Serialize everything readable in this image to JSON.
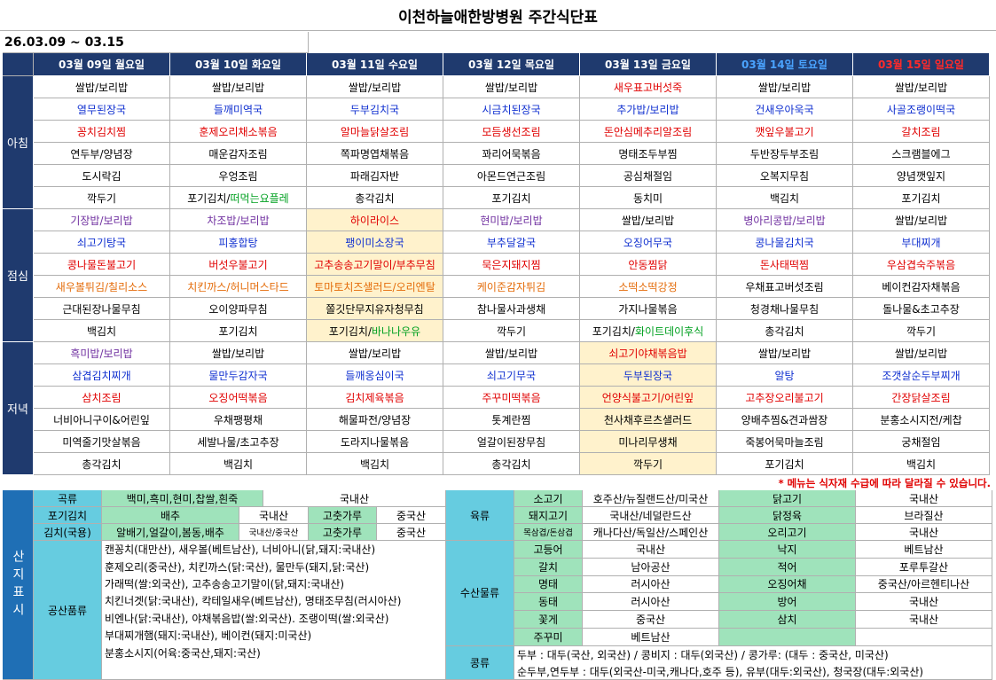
{
  "header": {
    "title": "이천하늘애한방병원 주간식단표",
    "date_range": "26.03.09 ~ 03.15"
  },
  "days": [
    {
      "label": "03월 09일 월요일",
      "color": "#ffffff"
    },
    {
      "label": "03월 10일 화요일",
      "color": "#ffffff"
    },
    {
      "label": "03월 11일 수요일",
      "color": "#ffffff"
    },
    {
      "label": "03월 12일 목요일",
      "color": "#ffffff"
    },
    {
      "label": "03월 13일 금요일",
      "color": "#ffffff"
    },
    {
      "label": "03월 14일 토요일",
      "color": "#4aa3ff"
    },
    {
      "label": "03월 15일 일요일",
      "color": "#ff2a2a"
    }
  ],
  "meals": [
    {
      "name": "아침",
      "rows": [
        {
          "color": "#000000",
          "items": [
            "쌀밥/보리밥",
            "쌀밥/보리밥",
            "쌀밥/보리밥",
            "쌀밥/보리밥",
            {
              "text": "새우표고버섯죽",
              "color": "#e00000"
            },
            "쌀밥/보리밥",
            "쌀밥/보리밥"
          ]
        },
        {
          "color": "#1030d0",
          "items": [
            "열무된장국",
            "들깨미역국",
            "두부김치국",
            "시금치된장국",
            "추가밥/보리밥",
            "건새우아욱국",
            "사골조랭이떡국"
          ]
        },
        {
          "color": "#e00000",
          "items": [
            "꽁치김치찜",
            "훈제오리채소볶음",
            "알마늘닭살조림",
            "모듬생선조림",
            "돈안심메추리알조림",
            "깻잎우불고기",
            "갈치조림"
          ]
        },
        {
          "color": "#000000",
          "items": [
            "연두부/양념장",
            "매운감자조림",
            "쪽파명엽채볶음",
            "꽈리어묵볶음",
            "명태조두부찜",
            "두반장두부조림",
            "스크램블에그"
          ]
        },
        {
          "color": "#000000",
          "items": [
            "도시락김",
            "우엉조림",
            "파래김자반",
            "아몬드연근조림",
            "공심채절임",
            "오복지무침",
            "양념깻잎지"
          ]
        },
        {
          "color": "#000000",
          "items": [
            "깍두기",
            {
              "text": "포기김치/",
              "color": "#000000",
              "extra": {
                "text": "떠먹는요플레",
                "color": "#00a020"
              }
            },
            "총각김치",
            "포기김치",
            "동치미",
            "백김치",
            "포기김치"
          ]
        }
      ]
    },
    {
      "name": "점심",
      "highlight_column": 2,
      "highlight": "#fff2cc",
      "rows": [
        {
          "color": "#7030a0",
          "items": [
            "기장밥/보리밥",
            "차조밥/보리밥",
            {
              "text": "하이라이스",
              "color": "#e00000"
            },
            "현미밥/보리밥",
            {
              "text": "쌀밥/보리밥",
              "color": "#000000"
            },
            "병아리콩밥/보리밥",
            {
              "text": "쌀밥/보리밥",
              "color": "#000000"
            }
          ]
        },
        {
          "color": "#1030d0",
          "items": [
            "쇠고기탕국",
            "피홍합탕",
            "팽이미소장국",
            "부추달갈국",
            "오징어무국",
            "콩나물김치국",
            "부대찌개"
          ]
        },
        {
          "color": "#e00000",
          "items": [
            "콩나물돈불고기",
            "버섯우불고기",
            "고추송송고기말이/부추무침",
            "묵은지돼지찜",
            "안동찜닭",
            "돈사태떡찜",
            "우삼겹숙주볶음"
          ]
        },
        {
          "color": "#e46c0a",
          "items": [
            "새우볼튀김/칠리소스",
            "치킨까스/허니머스타드",
            "토마토치즈샐러드/오리엔탈",
            "케이준감자튀김",
            "소떡소떡강정",
            {
              "text": "우채표고버섯조림",
              "color": "#000000"
            },
            {
              "text": "베이컨감자채볶음",
              "color": "#000000"
            }
          ]
        },
        {
          "color": "#000000",
          "items": [
            "근대된장나물무침",
            "오이양파무침",
            "쫄깃단무지유자청무침",
            "참나물사과생채",
            "가지나물볶음",
            "청경채나물무침",
            "돌나물&초고추장"
          ]
        },
        {
          "color": "#000000",
          "items": [
            "백김치",
            "포기김치",
            {
              "text": "포기김치/",
              "color": "#000000",
              "extra": {
                "text": "바나나우유",
                "color": "#00a020"
              }
            },
            "깍두기",
            {
              "text": "포기김치/",
              "color": "#000000",
              "extra": {
                "text": "화이트데이후식",
                "color": "#00a020"
              }
            },
            "총각김치",
            "깍두기"
          ]
        }
      ]
    },
    {
      "name": "저녁",
      "highlight_column": 4,
      "highlight": "#fff2cc",
      "rows": [
        {
          "color": "#000000",
          "items": [
            {
              "text": "흑미밥/보리밥",
              "color": "#7030a0"
            },
            "쌀밥/보리밥",
            "쌀밥/보리밥",
            "쌀밥/보리밥",
            {
              "text": "쇠고기야채볶음밥",
              "color": "#e00000"
            },
            "쌀밥/보리밥",
            "쌀밥/보리밥"
          ]
        },
        {
          "color": "#1030d0",
          "items": [
            "삼겹김치찌개",
            "물만두감자국",
            "들깨옹심이국",
            "쇠고기무국",
            "두부된장국",
            "알탕",
            "조갯살순두부찌개"
          ]
        },
        {
          "color": "#e00000",
          "items": [
            "삼치조림",
            "오징어떡볶음",
            "김치제육볶음",
            "주꾸미떡볶음",
            "언양식불고기/어린잎",
            "고추장오리불고기",
            "간장닭살조림"
          ]
        },
        {
          "color": "#000000",
          "items": [
            "너비아니구이&어린잎",
            "우채팽평채",
            "해물파전/양념장",
            "톳계란찜",
            "천사채후르츠샐러드",
            "양배추찜&견과쌈장",
            "분홍소시지전/케찹"
          ]
        },
        {
          "color": "#000000",
          "items": [
            "미역줄기맛살볶음",
            "세발나물/초고추장",
            "도라지나물볶음",
            "얼갈이된장무침",
            "미나리무생채",
            "죽봉어묵마늘조림",
            "궁채절임"
          ]
        },
        {
          "color": "#000000",
          "items": [
            "총각김치",
            "백김치",
            "백김치",
            "총각김치",
            "깍두기",
            "포기김치",
            "백김치"
          ]
        }
      ]
    }
  ],
  "note": "* 메뉴는 식자재 수급에 따라 달라질 수 있습니다.",
  "origin": {
    "label": "산지표시",
    "grain": {
      "category": "곡류",
      "item": "백미,흑미,현미,찹쌀,흰죽",
      "origin": "국내산"
    },
    "kimchi": [
      {
        "category": "포기김치",
        "item": "배추",
        "origin": "국내산",
        "item2": "고춧가루",
        "origin2": "중국산"
      },
      {
        "category": "김치(국용)",
        "item": "알배기,얼갈이,봄동,배추",
        "origin": "국내산/중국산",
        "item2": "고춧가루",
        "origin2": "중국산"
      }
    ],
    "processed": {
      "category": "공산품류",
      "lines": [
        "캔꽁치(대만산), 새우볼(베트남산), 너비아니(닭,돼지:국내산)",
        "훈제오리(중국산), 치킨까스(닭:국산), 물만두(돼지,닭:국산)",
        "가래떡(쌀:외국산), 고추송송고기말이(닭,돼지:국내산)",
        "치킨너겟(닭:국내산), 칵테일새우(베트남산), 명태조무침(러시아산)",
        "비엔나(닭:국내산), 야채볶음밥(쌀:외국산). 조랭이떡(쌀:외국산)",
        "부대찌개햄(돼지:국내산), 베이컨(돼지:미국산)",
        "분홍소시지(어육:중국산,돼지:국산)"
      ]
    },
    "meat": {
      "category": "육류",
      "rows": [
        [
          "소고기",
          "호주산/뉴질랜드산/미국산",
          "닭고기",
          "국내산"
        ],
        [
          "돼지고기",
          "국내산/네덜란드산",
          "닭정육",
          "브라질산"
        ],
        [
          "목삼겹/돈삼겹",
          "캐나다산/독일산/스페인산",
          "오리고기",
          "국내산"
        ]
      ]
    },
    "seafood": {
      "category": "수산물류",
      "rows": [
        [
          "고등어",
          "국내산",
          "낙지",
          "베트남산"
        ],
        [
          "갈치",
          "남아공산",
          "적어",
          "포루투갈산"
        ],
        [
          "명태",
          "러시아산",
          "오징어채",
          "중국산/아르헨티나산"
        ],
        [
          "동태",
          "러시아산",
          "방어",
          "국내산"
        ],
        [
          "꽃게",
          "중국산",
          "삼치",
          "국내산"
        ],
        [
          "주꾸미",
          "베트남산"
        ]
      ]
    },
    "beans": {
      "category": "콩류",
      "lines": [
        "두부 : 대두(국산, 외국산) / 콩비지 : 대두(외국산) / 콩가루: (대두 : 중국산, 미국산)",
        "순두부,연두부 : 대두(외국산-미국,캐나다,호주 등), 유부(대두:외국산), 청국장(대두:외국산)"
      ]
    }
  }
}
